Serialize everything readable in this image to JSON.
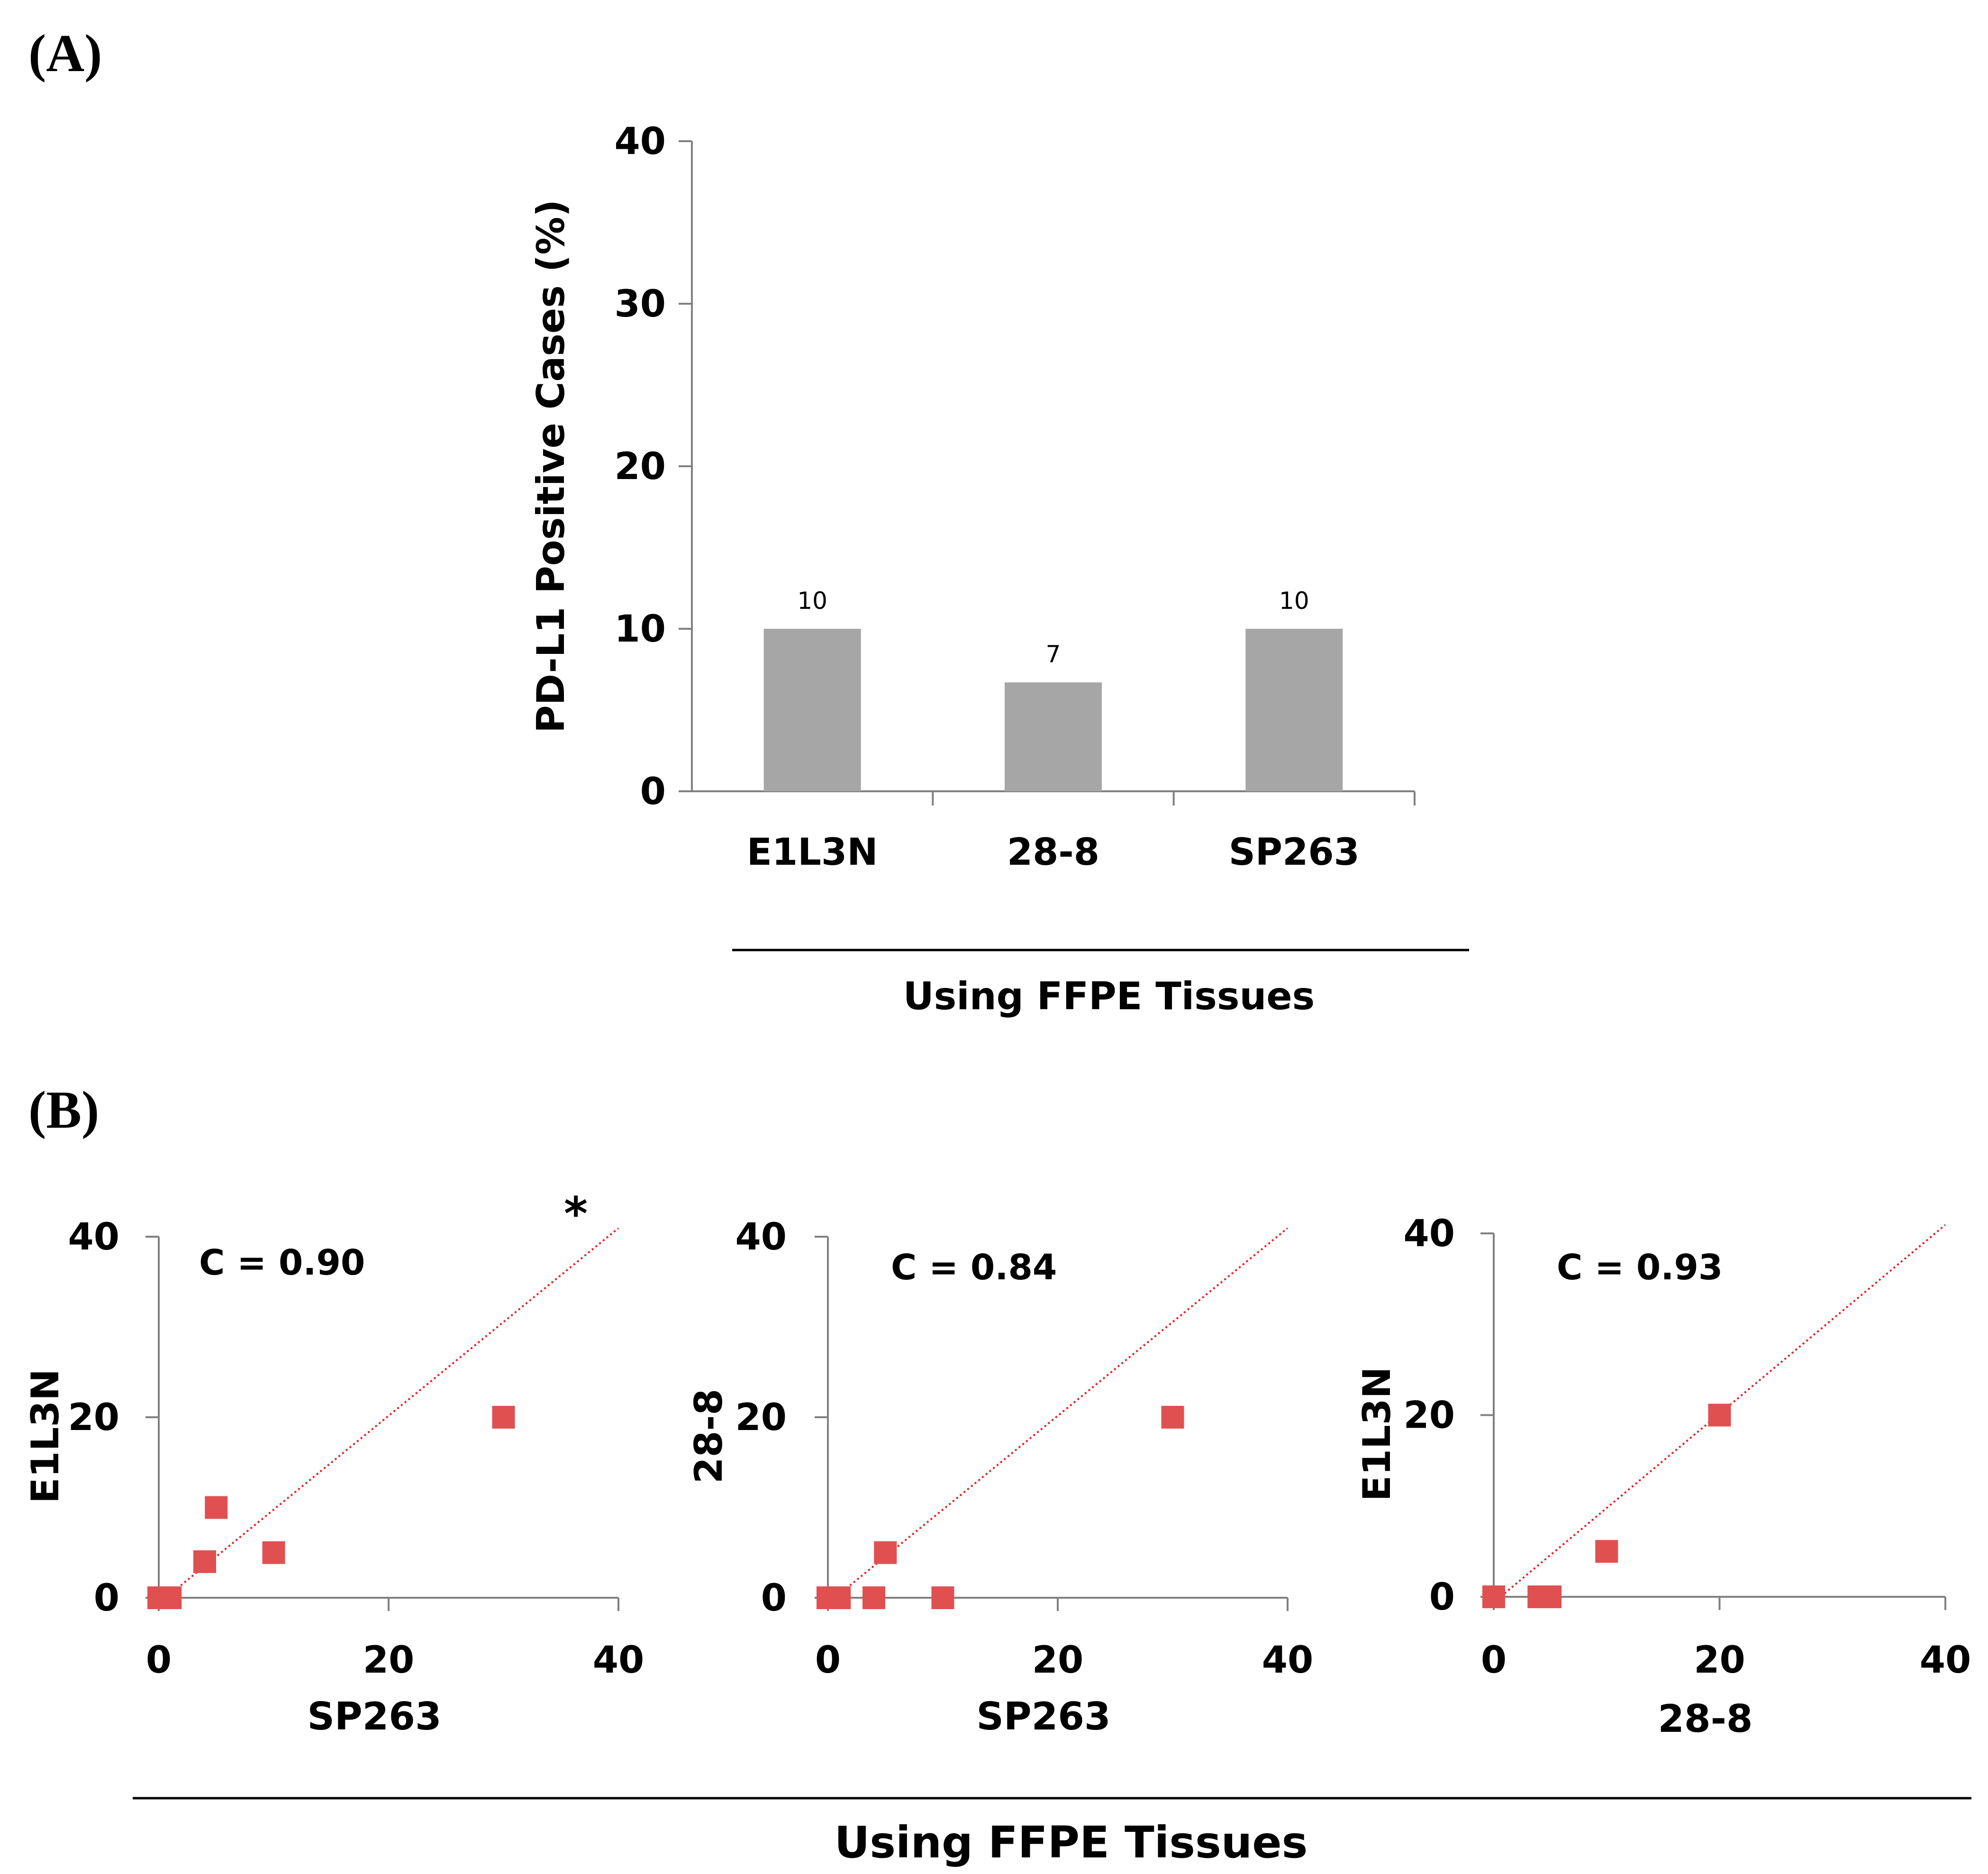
{
  "panel_a": {
    "letter": "(A)",
    "group_label": "Using FFPE Tissues"
  },
  "panel_b": {
    "letter": "(B)",
    "group_label": "Using FFPE Tissues"
  },
  "colors": {
    "bar": "#a6a6a6",
    "marker": "#e05050",
    "fit_line": "#e02020",
    "axis": "#808080"
  },
  "chart_data": [
    {
      "type": "bar",
      "categories": [
        "E1L3N",
        "28-8",
        "SP263"
      ],
      "values": [
        10,
        6.7,
        10
      ],
      "data_labels": [
        "10",
        "7",
        "10"
      ],
      "ylabel": "PD-L1 Positive Cases (%)",
      "xlabel": "",
      "ylim": [
        0,
        40
      ],
      "yticks": [
        "0",
        "10",
        "20",
        "30",
        "40"
      ],
      "grid": false
    },
    {
      "type": "scatter",
      "xlabel": "SP263",
      "ylabel": "E1L3N",
      "xlim": [
        0,
        40
      ],
      "ylim": [
        0,
        40
      ],
      "xticks": [
        "0",
        "20",
        "40"
      ],
      "yticks": [
        "0",
        "20",
        "40"
      ],
      "annotation": "C = 0.90",
      "significance": "*",
      "points": [
        [
          0,
          0
        ],
        [
          1,
          0
        ],
        [
          4,
          4
        ],
        [
          5,
          10
        ],
        [
          10,
          5
        ],
        [
          30,
          20
        ]
      ],
      "fit_line": [
        [
          0,
          0
        ],
        [
          40,
          40
        ]
      ]
    },
    {
      "type": "scatter",
      "xlabel": "SP263",
      "ylabel": "28-8",
      "xlim": [
        0,
        40
      ],
      "ylim": [
        0,
        40
      ],
      "xticks": [
        "0",
        "20",
        "40"
      ],
      "yticks": [
        "0",
        "20",
        "40"
      ],
      "annotation": "C = 0.84",
      "points": [
        [
          0,
          0
        ],
        [
          1,
          0
        ],
        [
          4,
          0
        ],
        [
          5,
          5
        ],
        [
          10,
          0
        ],
        [
          30,
          20
        ]
      ],
      "fit_line": [
        [
          0,
          0
        ],
        [
          40,
          40
        ]
      ]
    },
    {
      "type": "scatter",
      "xlabel": "28-8",
      "ylabel": "E1L3N",
      "xlim": [
        0,
        40
      ],
      "ylim": [
        0,
        40
      ],
      "xticks": [
        "0",
        "20",
        "40"
      ],
      "yticks": [
        "0",
        "20",
        "40"
      ],
      "annotation": "C = 0.93",
      "points": [
        [
          0,
          0
        ],
        [
          4,
          0
        ],
        [
          5,
          0
        ],
        [
          10,
          5
        ],
        [
          20,
          20
        ]
      ],
      "fit_line": [
        [
          0,
          0
        ],
        [
          40,
          40
        ]
      ]
    }
  ]
}
